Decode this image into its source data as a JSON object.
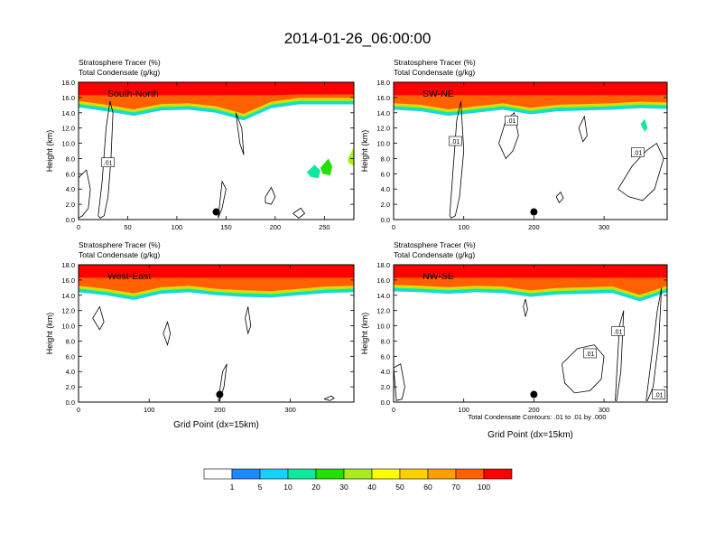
{
  "title": "2014-01-26_06:00:00",
  "footnote": "Total Condensate Contours: .01 to .01 by .000",
  "chart_data": [
    {
      "type": "heatmap",
      "cross_section": "South-North",
      "subtitle_line1": "Stratosphere Tracer   (%)",
      "subtitle_line2": "Total Condensate   (g/kg)",
      "ylabel": "Height (km)",
      "xlabel": "",
      "xlim": [
        0,
        280
      ],
      "ylim": [
        0,
        18
      ],
      "xticks": [
        0,
        50,
        100,
        150,
        200,
        250
      ],
      "yticks": [
        0.0,
        2.0,
        4.0,
        6.0,
        8.0,
        10.0,
        12.0,
        14.0,
        16.0,
        18.0
      ],
      "tracer_top_km": 16.3,
      "tracer_edge_km": [
        15.9,
        15.4,
        14.8,
        15.5,
        15.6,
        15.2,
        14.2,
        15.8,
        16.3,
        16.3,
        16.3
      ],
      "marker": {
        "x": 140,
        "y": 1.0
      },
      "contour_labels": [
        {
          "text": ".01",
          "x": 30,
          "y": 7.5
        }
      ],
      "contours": [
        {
          "x": [
            20,
            24,
            28,
            32,
            35,
            33,
            30,
            26,
            22,
            20
          ],
          "y": [
            0.5,
            5,
            12,
            15.5,
            14,
            8,
            3,
            0.5,
            0.2,
            0.5
          ]
        },
        {
          "x": [
            0,
            8,
            12,
            10,
            4,
            0
          ],
          "y": [
            5.5,
            6.5,
            4,
            1.5,
            0.5,
            0.2
          ]
        },
        {
          "x": [
            142,
            146,
            150,
            146,
            142
          ],
          "y": [
            0.2,
            1.5,
            4,
            5,
            0.2
          ]
        },
        {
          "x": [
            190,
            196,
            200,
            196,
            190,
            190
          ],
          "y": [
            3,
            4.2,
            3,
            2,
            2.2,
            3
          ]
        },
        {
          "x": [
            218,
            226,
            230,
            224,
            218
          ],
          "y": [
            0.8,
            1.5,
            0.8,
            0.2,
            0.8
          ]
        },
        {
          "x": [
            160,
            166,
            168,
            164,
            160
          ],
          "y": [
            14,
            12,
            8.5,
            10,
            14
          ]
        }
      ],
      "fill_patches": [
        {
          "x": [
            232,
            240,
            246,
            244,
            236,
            232
          ],
          "y": [
            6.2,
            7.2,
            6.4,
            5.4,
            5.6,
            6.2
          ],
          "value": 10
        },
        {
          "x": [
            246,
            254,
            258,
            256,
            248,
            246
          ],
          "y": [
            6.8,
            8,
            7,
            5.8,
            6,
            6.8
          ],
          "value": 20
        },
        {
          "x": [
            274,
            280,
            280,
            274
          ],
          "y": [
            8,
            9.5,
            7,
            7.5
          ],
          "value": 30
        }
      ]
    },
    {
      "type": "heatmap",
      "cross_section": "SW-NE",
      "subtitle_line1": "Stratosphere Tracer   (%)",
      "subtitle_line2": "Total Condensate   (g/kg)",
      "ylabel": "Height (km)",
      "xlabel": "",
      "xlim": [
        0,
        390
      ],
      "ylim": [
        0,
        18
      ],
      "xticks": [
        0,
        100,
        200,
        300
      ],
      "yticks": [
        0.0,
        2.0,
        4.0,
        6.0,
        8.0,
        10.0,
        12.0,
        14.0,
        16.0,
        18.0
      ],
      "tracer_top_km": 16.3,
      "tracer_edge_km": [
        15.6,
        15.4,
        14.8,
        15.2,
        15.6,
        15.0,
        15.4,
        15.5,
        15.6,
        15.8,
        15.7
      ],
      "marker": {
        "x": 200,
        "y": 1.0
      },
      "contour_labels": [
        {
          "text": ".01",
          "x": 88,
          "y": 10.3
        },
        {
          "text": ".01",
          "x": 168,
          "y": 13.0
        },
        {
          "text": ".01",
          "x": 348,
          "y": 8.8
        }
      ],
      "contours": [
        {
          "x": [
            80,
            86,
            90,
            96,
            100,
            94,
            88,
            82,
            80
          ],
          "y": [
            0.5,
            8,
            13,
            15.5,
            9,
            3,
            0.5,
            0.2,
            0.5
          ]
        },
        {
          "x": [
            150,
            160,
            172,
            178,
            170,
            160,
            150
          ],
          "y": [
            10,
            13,
            14,
            11,
            9,
            8,
            10
          ]
        },
        {
          "x": [
            320,
            340,
            360,
            375,
            385,
            372,
            355,
            335,
            320
          ],
          "y": [
            4,
            7,
            9,
            10,
            8,
            4,
            2.5,
            3,
            4
          ]
        },
        {
          "x": [
            232,
            238,
            242,
            236,
            232
          ],
          "y": [
            3,
            3.6,
            2.8,
            2.2,
            3
          ]
        },
        {
          "x": [
            264,
            272,
            276,
            270,
            264
          ],
          "y": [
            12,
            13.5,
            11,
            10.2,
            12
          ]
        }
      ],
      "fill_patches": [
        {
          "x": [
            352,
            358,
            362,
            358,
            352
          ],
          "y": [
            12.5,
            13.2,
            12,
            11.5,
            12.5
          ],
          "value": 10
        }
      ]
    },
    {
      "type": "heatmap",
      "cross_section": "West-East",
      "subtitle_line1": "Stratosphere Tracer   (%)",
      "subtitle_line2": "Total Condensate   (g/kg)",
      "ylabel": "Height (km)",
      "xlabel": "Grid Point (dx=15km)",
      "xlim": [
        0,
        390
      ],
      "ylim": [
        0,
        18
      ],
      "xticks": [
        0,
        100,
        200,
        300
      ],
      "yticks": [
        0.0,
        2.0,
        4.0,
        6.0,
        8.0,
        10.0,
        12.0,
        14.0,
        16.0,
        18.0
      ],
      "tracer_top_km": 16.3,
      "tracer_edge_km": [
        15.6,
        15.2,
        14.6,
        15.4,
        15.6,
        15.2,
        15.0,
        14.9,
        15.2,
        15.5,
        15.6
      ],
      "marker": {
        "x": 200,
        "y": 1.0
      },
      "contour_labels": [],
      "contours": [
        {
          "x": [
            198,
            204,
            210,
            206,
            200,
            198
          ],
          "y": [
            0.2,
            4,
            5,
            2,
            0.2,
            0.2
          ]
        },
        {
          "x": [
            20,
            30,
            36,
            30,
            20
          ],
          "y": [
            11,
            12.5,
            10.5,
            9.5,
            11
          ]
        },
        {
          "x": [
            120,
            126,
            130,
            126,
            120
          ],
          "y": [
            9,
            10.5,
            9,
            7.5,
            9
          ]
        },
        {
          "x": [
            236,
            240,
            244,
            240,
            236
          ],
          "y": [
            11,
            12.5,
            10,
            9,
            11
          ]
        },
        {
          "x": [
            348,
            358,
            362,
            356,
            348
          ],
          "y": [
            0.4,
            0.8,
            0.5,
            0.2,
            0.4
          ]
        }
      ],
      "fill_patches": []
    },
    {
      "type": "heatmap",
      "cross_section": "NW-SE",
      "subtitle_line1": "Stratosphere Tracer   (%)",
      "subtitle_line2": "Total Condensate   (g/kg)",
      "ylabel": "Height (km)",
      "xlabel": "Grid Point (dx=15km)",
      "xlim": [
        0,
        390
      ],
      "ylim": [
        0,
        18
      ],
      "xticks": [
        0,
        100,
        200,
        300
      ],
      "yticks": [
        0.0,
        2.0,
        4.0,
        6.0,
        8.0,
        10.0,
        12.0,
        14.0,
        16.0,
        18.0
      ],
      "tracer_top_km": 16.3,
      "tracer_edge_km": [
        15.7,
        15.6,
        15.4,
        15.6,
        15.5,
        15.0,
        15.3,
        15.4,
        15.5,
        14.4,
        15.6
      ],
      "marker": {
        "x": 200,
        "y": 1.0
      },
      "contour_labels": [
        {
          "text": ".01",
          "x": 280,
          "y": 6.4
        },
        {
          "text": ".01",
          "x": 320,
          "y": 9.3
        },
        {
          "text": ".01",
          "x": 378,
          "y": 1.0
        }
      ],
      "contours": [
        {
          "x": [
            240,
            262,
            286,
            300,
            296,
            280,
            258,
            244,
            240
          ],
          "y": [
            5,
            7,
            7.5,
            6,
            3,
            1.5,
            1.2,
            2.5,
            5
          ]
        },
        {
          "x": [
            316,
            322,
            328,
            324,
            318,
            316
          ],
          "y": [
            0.2,
            10,
            12,
            4,
            0.2,
            0.2
          ]
        },
        {
          "x": [
            360,
            368,
            376,
            382,
            378,
            370,
            362,
            360
          ],
          "y": [
            0.2,
            6,
            12,
            15,
            8,
            2,
            0.2,
            0.2
          ]
        },
        {
          "x": [
            0,
            10,
            16,
            12,
            4,
            0
          ],
          "y": [
            4.5,
            5,
            2,
            0.4,
            0.2,
            4.5
          ]
        },
        {
          "x": [
            185,
            188,
            191,
            188,
            185
          ],
          "y": [
            12.5,
            13.5,
            12.2,
            11.2,
            12.5
          ]
        }
      ],
      "fill_patches": []
    }
  ],
  "colorbar": {
    "labels": [
      "1",
      "5",
      "10",
      "20",
      "30",
      "40",
      "50",
      "60",
      "70",
      "100"
    ],
    "colors": [
      "#ffffff",
      "#1e88ff",
      "#18d0ff",
      "#10e8a0",
      "#22e000",
      "#a8ec20",
      "#ffff00",
      "#ffd000",
      "#ffa000",
      "#ff6000",
      "#ff0000"
    ]
  }
}
